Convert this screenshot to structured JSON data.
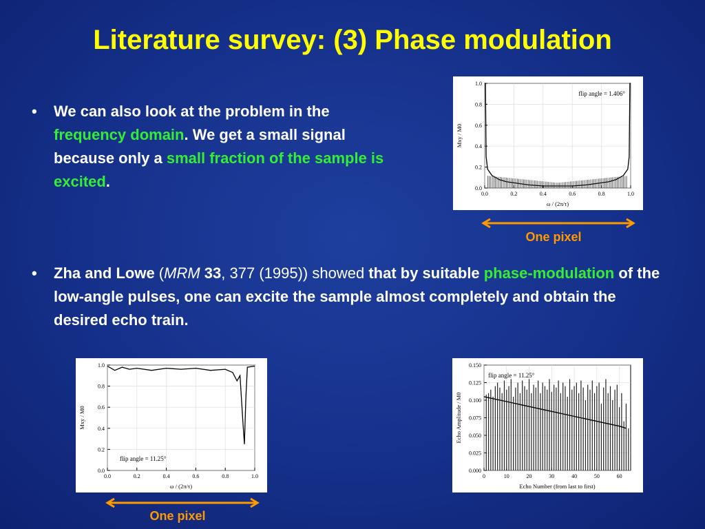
{
  "slide": {
    "title": "Literature survey: (3) Phase modulation",
    "bullet1": {
      "p1": "We can also look at the problem in the ",
      "h1": "frequency domain",
      "p2": ". We get a small signal because only a ",
      "h2": "small fraction of the sample is excited",
      "p3": "."
    },
    "bullet2": {
      "authors": "Zha and Lowe",
      "ref_open": " (",
      "journal": "MRM",
      "volume": " 33",
      "ref_rest": ", 377 (1995))",
      "showed": " showed ",
      "p1": "that by suitable ",
      "h1": "phase-modulation",
      "p2": " of the low-angle pulses, one can excite the sample almost completely and obtain the desired echo train."
    },
    "bullet_glyph": "•",
    "pixel_label_top": "One pixel",
    "pixel_label_bottom": "One pixel",
    "arrow_color": "#ff9900"
  },
  "chart_data": [
    {
      "type": "line",
      "annotation": "flip angle = 1.406°",
      "xlabel": "ω / (2π/τ)",
      "ylabel": "Mxy / M0",
      "xlim": [
        0.0,
        1.0
      ],
      "ylim": [
        0.0,
        1.0
      ],
      "xticks": [
        "0.0",
        "0.2",
        "0.4",
        "0.6",
        "0.8",
        "1.0"
      ],
      "yticks": [
        "0.0",
        "0.2",
        "0.4",
        "0.6",
        "0.8",
        "1.0"
      ],
      "series": [
        {
          "x": [
            0.0,
            0.005,
            0.01,
            0.02,
            0.05,
            0.1,
            0.15,
            0.2,
            0.3,
            0.4,
            0.5,
            0.6,
            0.7,
            0.8,
            0.85,
            0.9,
            0.95,
            0.98,
            0.99,
            0.995,
            1.0
          ],
          "values": [
            1.0,
            1.0,
            0.3,
            0.18,
            0.12,
            0.08,
            0.06,
            0.05,
            0.03,
            0.02,
            0.02,
            0.02,
            0.03,
            0.05,
            0.06,
            0.08,
            0.12,
            0.18,
            0.3,
            1.0,
            1.0
          ]
        }
      ]
    },
    {
      "type": "line",
      "annotation": "flip angle = 11.25°",
      "xlabel": "ω / (2π/τ)",
      "ylabel": "Mxy / M0",
      "xlim": [
        0.0,
        1.0
      ],
      "ylim": [
        0.0,
        1.0
      ],
      "xticks": [
        "0.0",
        "0.2",
        "0.4",
        "0.6",
        "0.8",
        "1.0"
      ],
      "yticks": [
        "0.0",
        "0.2",
        "0.4",
        "0.6",
        "0.8",
        "1.0"
      ],
      "series": [
        {
          "x": [
            0.0,
            0.05,
            0.1,
            0.15,
            0.2,
            0.3,
            0.4,
            0.5,
            0.6,
            0.7,
            0.8,
            0.85,
            0.88,
            0.9,
            0.92,
            0.93,
            0.94,
            0.95,
            1.0
          ],
          "values": [
            0.99,
            0.95,
            0.98,
            0.96,
            0.97,
            0.95,
            0.97,
            0.96,
            0.97,
            0.95,
            0.96,
            0.93,
            0.85,
            0.9,
            0.45,
            0.25,
            0.7,
            0.98,
            0.99
          ]
        }
      ]
    },
    {
      "type": "bar",
      "annotation": "flip angle = 11.25°",
      "xlabel": "Echo Number  (from last to first)",
      "ylabel": "Echo Amplitude / M0",
      "xlim": [
        0,
        65
      ],
      "ylim": [
        0.0,
        0.15
      ],
      "xticks": [
        "0",
        "10",
        "20",
        "30",
        "40",
        "50",
        "60"
      ],
      "yticks": [
        "0.000",
        "0.025",
        "0.050",
        "0.075",
        "0.100",
        "0.125",
        "0.150"
      ],
      "series": [
        {
          "name": "echo",
          "values": [
            0.108,
            0.11,
            0.115,
            0.105,
            0.12,
            0.125,
            0.118,
            0.11,
            0.128,
            0.115,
            0.12,
            0.13,
            0.105,
            0.118,
            0.125,
            0.11,
            0.128,
            0.12,
            0.115,
            0.13,
            0.11,
            0.122,
            0.118,
            0.128,
            0.11,
            0.125,
            0.12,
            0.115,
            0.13,
            0.112,
            0.122,
            0.118,
            0.128,
            0.11,
            0.125,
            0.12,
            0.105,
            0.13,
            0.115,
            0.12,
            0.125,
            0.11,
            0.128,
            0.118,
            0.1,
            0.122,
            0.115,
            0.128,
            0.11,
            0.12,
            0.125,
            0.095,
            0.118,
            0.13,
            0.11,
            0.12,
            0.1,
            0.115,
            0.122,
            0.09,
            0.11,
            0.07,
            0.095,
            0.06
          ]
        },
        {
          "name": "decay",
          "x": [
            0,
            10,
            20,
            30,
            40,
            50,
            60,
            63
          ],
          "values": [
            0.105,
            0.098,
            0.091,
            0.084,
            0.077,
            0.07,
            0.063,
            0.06
          ]
        }
      ]
    }
  ]
}
